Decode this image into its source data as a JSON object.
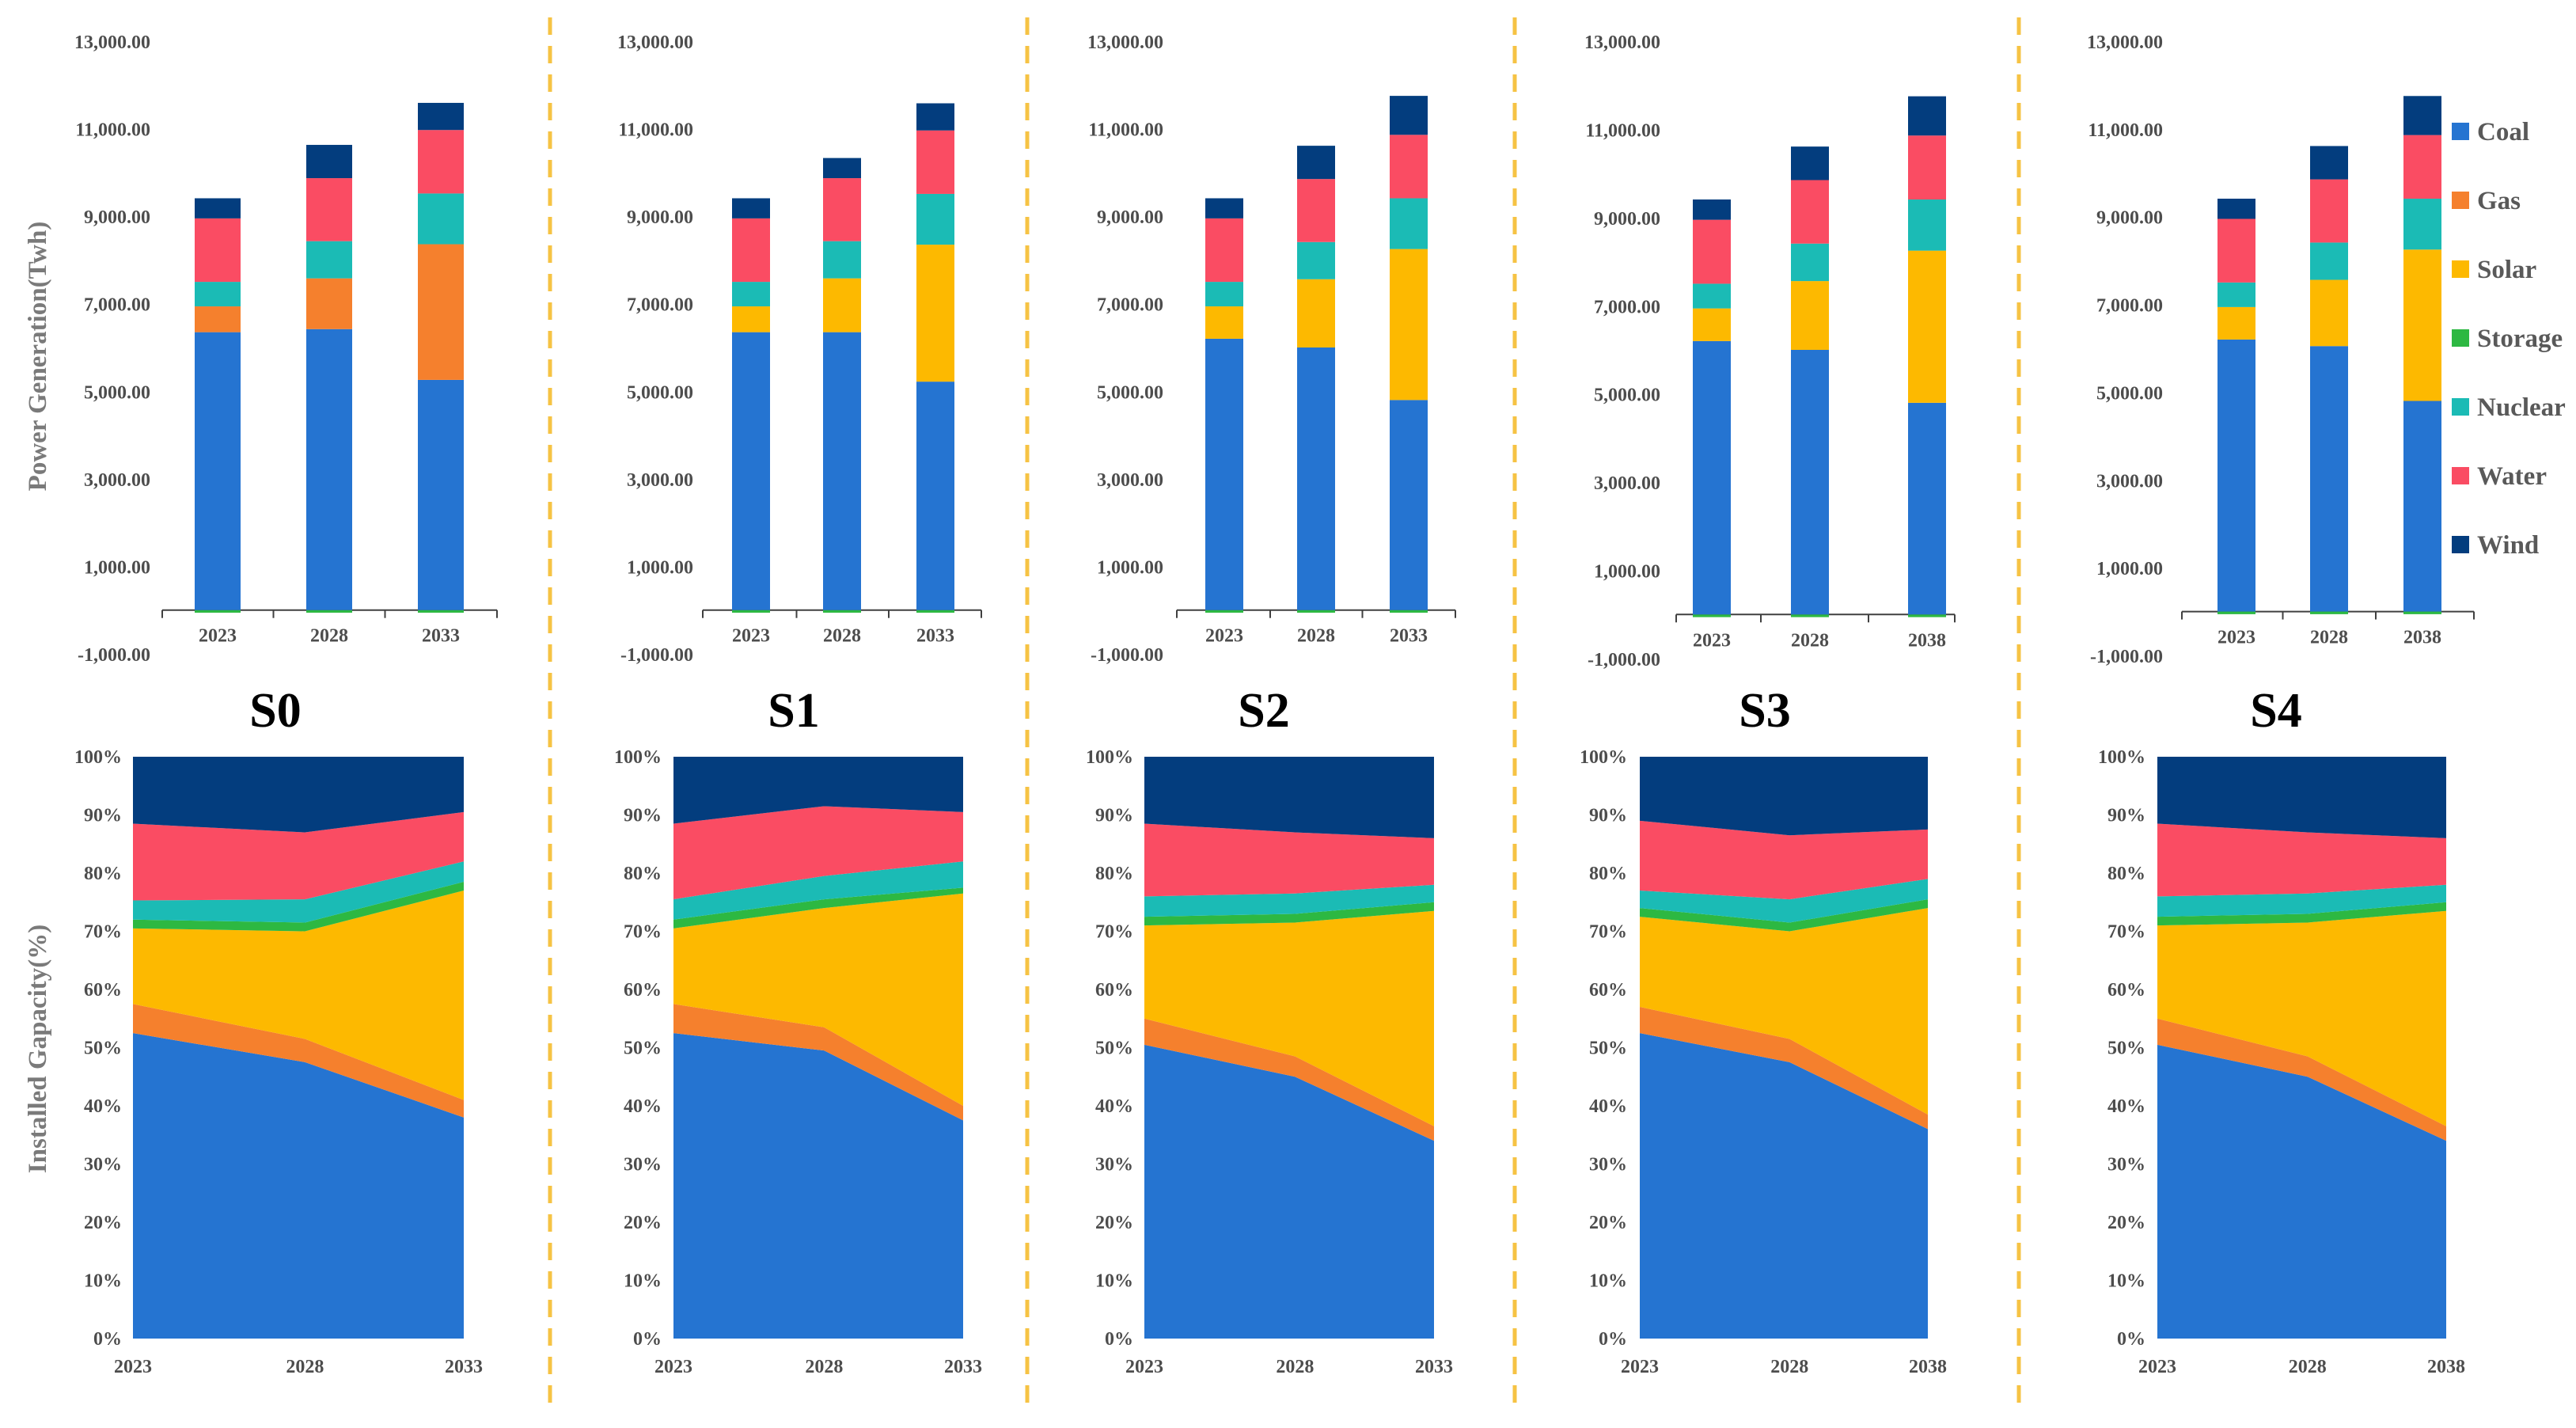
{
  "figure": {
    "series_names": [
      "Coal",
      "Gas",
      "Solar",
      "Storage",
      "Nuclear",
      "Water",
      "Wind"
    ],
    "colors": {
      "Coal": "#2574D1",
      "Gas": "#F5802D",
      "Solar": "#FDB900",
      "Storage": "#2DB842",
      "Nuclear": "#1BBBB5",
      "Water": "#FA4C63",
      "Wind": "#033D7E",
      "divider": "#F6C344",
      "axis": "#404040"
    },
    "y_axis_title_top": "Power Generation(Twh)",
    "y_axis_title_bottom": "Installed Gapacity(%)",
    "legend": [
      "Coal",
      "Gas",
      "Solar",
      "Storage",
      "Nuclear",
      "Water",
      "Wind"
    ]
  },
  "chart_data": [
    {
      "id": "S0-generation",
      "panel": "S0",
      "type": "bar",
      "stacked": true,
      "title": "S0",
      "categories": [
        "2023",
        "2028",
        "2033"
      ],
      "ylabel": "Power Generation(Twh)",
      "ylim": [
        -1000,
        13000
      ],
      "yticks": [
        "13,000.00",
        "11,000.00",
        "9,000.00",
        "7,000.00",
        "5,000.00",
        "3,000.00",
        "1,000.00",
        "-1,000.00"
      ],
      "series": [
        {
          "name": "Storage",
          "values": [
            -60,
            -60,
            -60
          ]
        },
        {
          "name": "Coal",
          "values": [
            6350,
            6420,
            5260
          ]
        },
        {
          "name": "Gas",
          "values": [
            590,
            1160,
            3100
          ]
        },
        {
          "name": "Solar",
          "values": [
            0,
            0,
            0
          ]
        },
        {
          "name": "Nuclear",
          "values": [
            560,
            850,
            1160
          ]
        },
        {
          "name": "Water",
          "values": [
            1450,
            1440,
            1450
          ]
        },
        {
          "name": "Wind",
          "values": [
            460,
            760,
            620
          ]
        }
      ]
    },
    {
      "id": "S1-generation",
      "panel": "S1",
      "type": "bar",
      "stacked": true,
      "title": "S1",
      "categories": [
        "2023",
        "2028",
        "2033"
      ],
      "ylabel": "Power Generation(Twh)",
      "ylim": [
        -1000,
        13000
      ],
      "yticks": [
        "13,000.00",
        "11,000.00",
        "9,000.00",
        "7,000.00",
        "5,000.00",
        "3,000.00",
        "1,000.00",
        "-1,000.00"
      ],
      "series": [
        {
          "name": "Storage",
          "values": [
            -60,
            -60,
            -60
          ]
        },
        {
          "name": "Coal",
          "values": [
            6350,
            6350,
            5220
          ]
        },
        {
          "name": "Gas",
          "values": [
            0,
            0,
            0
          ]
        },
        {
          "name": "Solar",
          "values": [
            590,
            1230,
            3130
          ]
        },
        {
          "name": "Nuclear",
          "values": [
            560,
            850,
            1160
          ]
        },
        {
          "name": "Water",
          "values": [
            1450,
            1440,
            1450
          ]
        },
        {
          "name": "Wind",
          "values": [
            460,
            460,
            620
          ]
        }
      ]
    },
    {
      "id": "S2-generation",
      "panel": "S2",
      "type": "bar",
      "stacked": true,
      "title": "S2",
      "categories": [
        "2023",
        "2028",
        "2033"
      ],
      "ylabel": "Power Generation(Twh)",
      "ylim": [
        -1000,
        13000
      ],
      "yticks": [
        "13,000.00",
        "11,000.00",
        "9,000.00",
        "7,000.00",
        "5,000.00",
        "3,000.00",
        "1,000.00",
        "-1,000.00"
      ],
      "series": [
        {
          "name": "Storage",
          "values": [
            -60,
            -60,
            -60
          ]
        },
        {
          "name": "Coal",
          "values": [
            6200,
            6000,
            4800
          ]
        },
        {
          "name": "Gas",
          "values": [
            0,
            0,
            0
          ]
        },
        {
          "name": "Solar",
          "values": [
            740,
            1560,
            3450
          ]
        },
        {
          "name": "Nuclear",
          "values": [
            560,
            850,
            1160
          ]
        },
        {
          "name": "Water",
          "values": [
            1450,
            1440,
            1450
          ]
        },
        {
          "name": "Wind",
          "values": [
            460,
            760,
            890
          ]
        }
      ]
    },
    {
      "id": "S3-generation",
      "panel": "S3",
      "type": "bar",
      "stacked": true,
      "title": "S3",
      "categories": [
        "2023",
        "2028",
        "2038"
      ],
      "ylabel": "Power Generation(Twh)",
      "ylim": [
        -1000,
        13000
      ],
      "yticks": [
        "13,000.00",
        "11,000.00",
        "9,000.00",
        "7,000.00",
        "5,000.00",
        "3,000.00",
        "1,000.00",
        "-1,000.00"
      ],
      "series": [
        {
          "name": "Storage",
          "values": [
            -60,
            -60,
            -60
          ]
        },
        {
          "name": "Coal",
          "values": [
            6200,
            6000,
            4800
          ]
        },
        {
          "name": "Gas",
          "values": [
            0,
            0,
            0
          ]
        },
        {
          "name": "Solar",
          "values": [
            740,
            1560,
            3450
          ]
        },
        {
          "name": "Nuclear",
          "values": [
            560,
            850,
            1160
          ]
        },
        {
          "name": "Water",
          "values": [
            1450,
            1440,
            1450
          ]
        },
        {
          "name": "Wind",
          "values": [
            460,
            760,
            890
          ]
        }
      ]
    },
    {
      "id": "S4-generation",
      "panel": "S4",
      "type": "bar",
      "stacked": true,
      "title": "S4",
      "categories": [
        "2023",
        "2028",
        "2038"
      ],
      "ylabel": "Power Generation(Twh)",
      "ylim": [
        -1000,
        13000
      ],
      "yticks": [
        "13,000.00",
        "11,000.00",
        "9,000.00",
        "7,000.00",
        "5,000.00",
        "3,000.00",
        "1,000.00",
        "-1,000.00"
      ],
      "legend": [
        "Coal",
        "Gas",
        "Solar",
        "Storage",
        "Nuclear",
        "Water",
        "Wind"
      ],
      "series": [
        {
          "name": "Storage",
          "values": [
            -60,
            -60,
            -60
          ]
        },
        {
          "name": "Coal",
          "values": [
            6200,
            6050,
            4800
          ]
        },
        {
          "name": "Gas",
          "values": [
            0,
            0,
            0
          ]
        },
        {
          "name": "Solar",
          "values": [
            740,
            1510,
            3450
          ]
        },
        {
          "name": "Nuclear",
          "values": [
            560,
            850,
            1160
          ]
        },
        {
          "name": "Water",
          "values": [
            1450,
            1440,
            1450
          ]
        },
        {
          "name": "Wind",
          "values": [
            460,
            760,
            890
          ]
        }
      ]
    },
    {
      "id": "S0-capacity",
      "panel": "S0",
      "type": "area",
      "stacked": true,
      "x": [
        "2023",
        "2028",
        "2033"
      ],
      "ylabel": "Installed Gapacity(%)",
      "ylim": [
        0,
        100
      ],
      "yticks": [
        "100%",
        "90%",
        "80%",
        "70%",
        "60%",
        "50%",
        "40%",
        "30%",
        "20%",
        "10%",
        "0%"
      ],
      "series": [
        {
          "name": "Coal",
          "values": [
            52.5,
            47.5,
            38
          ]
        },
        {
          "name": "Gas",
          "values": [
            5,
            4,
            3
          ]
        },
        {
          "name": "Solar",
          "values": [
            13,
            18.5,
            36
          ]
        },
        {
          "name": "Storage",
          "values": [
            1.5,
            1.5,
            1.5
          ]
        },
        {
          "name": "Nuclear",
          "values": [
            3.3,
            4,
            3.5
          ]
        },
        {
          "name": "Water",
          "values": [
            13.2,
            11.5,
            8.5
          ]
        },
        {
          "name": "Wind",
          "values": [
            11.5,
            13,
            9.5
          ]
        }
      ]
    },
    {
      "id": "S1-capacity",
      "panel": "S1",
      "type": "area",
      "stacked": true,
      "x": [
        "2023",
        "2028",
        "2033"
      ],
      "ylabel": "Installed Gapacity(%)",
      "ylim": [
        0,
        100
      ],
      "yticks": [
        "100%",
        "90%",
        "80%",
        "70%",
        "60%",
        "50%",
        "40%",
        "30%",
        "20%",
        "10%",
        "0%"
      ],
      "series": [
        {
          "name": "Coal",
          "values": [
            52.5,
            49.5,
            37.5
          ]
        },
        {
          "name": "Gas",
          "values": [
            5,
            4,
            2.5
          ]
        },
        {
          "name": "Solar",
          "values": [
            13,
            20.5,
            36.5
          ]
        },
        {
          "name": "Storage",
          "values": [
            1.5,
            1.5,
            1
          ]
        },
        {
          "name": "Nuclear",
          "values": [
            3.5,
            4,
            4.5
          ]
        },
        {
          "name": "Water",
          "values": [
            13,
            12,
            8.5
          ]
        },
        {
          "name": "Wind",
          "values": [
            11.5,
            8.5,
            9.5
          ]
        }
      ]
    },
    {
      "id": "S2-capacity",
      "panel": "S2",
      "type": "area",
      "stacked": true,
      "x": [
        "2023",
        "2028",
        "2033"
      ],
      "ylabel": "Installed Gapacity(%)",
      "ylim": [
        0,
        100
      ],
      "yticks": [
        "100%",
        "90%",
        "80%",
        "70%",
        "60%",
        "50%",
        "40%",
        "30%",
        "20%",
        "10%",
        "0%"
      ],
      "series": [
        {
          "name": "Coal",
          "values": [
            50.5,
            45,
            34
          ]
        },
        {
          "name": "Gas",
          "values": [
            4.5,
            3.5,
            2.5
          ]
        },
        {
          "name": "Solar",
          "values": [
            16,
            23,
            37
          ]
        },
        {
          "name": "Storage",
          "values": [
            1.5,
            1.5,
            1.5
          ]
        },
        {
          "name": "Nuclear",
          "values": [
            3.5,
            3.5,
            3
          ]
        },
        {
          "name": "Water",
          "values": [
            12.5,
            10.5,
            8
          ]
        },
        {
          "name": "Wind",
          "values": [
            11.5,
            13,
            14
          ]
        }
      ]
    },
    {
      "id": "S3-capacity",
      "panel": "S3",
      "type": "area",
      "stacked": true,
      "x": [
        "2023",
        "2028",
        "2038"
      ],
      "ylabel": "Installed Gapacity(%)",
      "ylim": [
        0,
        100
      ],
      "yticks": [
        "100%",
        "90%",
        "80%",
        "70%",
        "60%",
        "50%",
        "40%",
        "30%",
        "20%",
        "10%",
        "0%"
      ],
      "series": [
        {
          "name": "Coal",
          "values": [
            52.5,
            47.5,
            36
          ]
        },
        {
          "name": "Gas",
          "values": [
            4.5,
            4,
            2.5
          ]
        },
        {
          "name": "Solar",
          "values": [
            15.5,
            18.5,
            35.5
          ]
        },
        {
          "name": "Storage",
          "values": [
            1.5,
            1.5,
            1.5
          ]
        },
        {
          "name": "Nuclear",
          "values": [
            3,
            4,
            3.5
          ]
        },
        {
          "name": "Water",
          "values": [
            12,
            11,
            8.5
          ]
        },
        {
          "name": "Wind",
          "values": [
            11,
            13.5,
            12.5
          ]
        }
      ]
    },
    {
      "id": "S4-capacity",
      "panel": "S4",
      "type": "area",
      "stacked": true,
      "x": [
        "2023",
        "2028",
        "2038"
      ],
      "ylabel": "Installed Gapacity(%)",
      "ylim": [
        0,
        100
      ],
      "yticks": [
        "100%",
        "90%",
        "80%",
        "70%",
        "60%",
        "50%",
        "40%",
        "30%",
        "20%",
        "10%",
        "0%"
      ],
      "series": [
        {
          "name": "Coal",
          "values": [
            50.5,
            45,
            34
          ]
        },
        {
          "name": "Gas",
          "values": [
            4.5,
            3.5,
            2.5
          ]
        },
        {
          "name": "Solar",
          "values": [
            16,
            23,
            37
          ]
        },
        {
          "name": "Storage",
          "values": [
            1.5,
            1.5,
            1.5
          ]
        },
        {
          "name": "Nuclear",
          "values": [
            3.5,
            3.5,
            3
          ]
        },
        {
          "name": "Water",
          "values": [
            12.5,
            10.5,
            8
          ]
        },
        {
          "name": "Wind",
          "values": [
            11.5,
            13,
            14
          ]
        }
      ]
    }
  ]
}
